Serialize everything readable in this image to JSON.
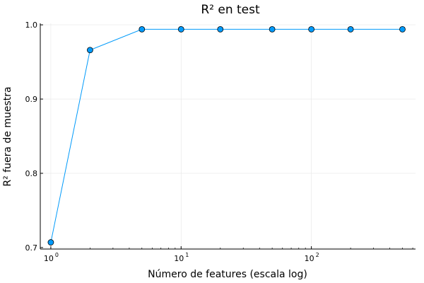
{
  "chart_data": {
    "type": "scatter",
    "title": "R² en test",
    "xlabel": "Número de features (escala log)",
    "ylabel": "R² fuera de muestra",
    "x_scale": "log",
    "xlim": [
      0.83,
      630
    ],
    "ylim": [
      0.698,
      1.002
    ],
    "grid": true,
    "legend": "none",
    "x_ticks": [
      {
        "value": 1,
        "base": "10",
        "exp": "0"
      },
      {
        "value": 10,
        "base": "10",
        "exp": "1"
      },
      {
        "value": 100,
        "base": "10",
        "exp": "2"
      }
    ],
    "y_ticks": [
      {
        "value": 0.7,
        "label": "0.7"
      },
      {
        "value": 0.8,
        "label": "0.8"
      },
      {
        "value": 0.9,
        "label": "0.9"
      },
      {
        "value": 1.0,
        "label": "1.0"
      }
    ],
    "series": [
      {
        "x": [
          1,
          2,
          5,
          10,
          20,
          50,
          100,
          200,
          500
        ],
        "y": [
          0.707,
          0.966,
          0.994,
          0.994,
          0.994,
          0.994,
          0.994,
          0.994,
          0.994
        ],
        "color": "#009AFA",
        "marker": "circle",
        "line": true
      }
    ]
  }
}
